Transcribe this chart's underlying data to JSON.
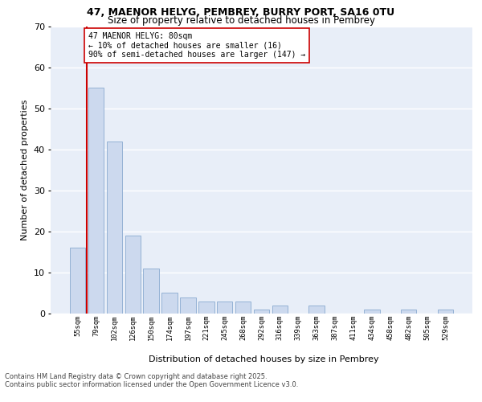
{
  "title": "47, MAENOR HELYG, PEMBREY, BURRY PORT, SA16 0TU",
  "subtitle": "Size of property relative to detached houses in Pembrey",
  "xlabel": "Distribution of detached houses by size in Pembrey",
  "ylabel": "Number of detached properties",
  "categories": [
    "55sqm",
    "79sqm",
    "102sqm",
    "126sqm",
    "150sqm",
    "174sqm",
    "197sqm",
    "221sqm",
    "245sqm",
    "268sqm",
    "292sqm",
    "316sqm",
    "339sqm",
    "363sqm",
    "387sqm",
    "411sqm",
    "434sqm",
    "458sqm",
    "482sqm",
    "505sqm",
    "529sqm"
  ],
  "values": [
    16,
    55,
    42,
    19,
    11,
    5,
    4,
    3,
    3,
    3,
    1,
    2,
    0,
    2,
    0,
    0,
    1,
    0,
    1,
    0,
    1
  ],
  "bar_color": "#ccd9ee",
  "bar_edge_color": "#8aaad0",
  "background_color": "#e8eef8",
  "grid_color": "#ffffff",
  "ylim": [
    0,
    70
  ],
  "yticks": [
    0,
    10,
    20,
    30,
    40,
    50,
    60,
    70
  ],
  "property_line_color": "#cc0000",
  "annotation_text": "47 MAENOR HELYG: 80sqm\n← 10% of detached houses are smaller (16)\n90% of semi-detached houses are larger (147) →",
  "footer_line1": "Contains HM Land Registry data © Crown copyright and database right 2025.",
  "footer_line2": "Contains public sector information licensed under the Open Government Licence v3.0."
}
